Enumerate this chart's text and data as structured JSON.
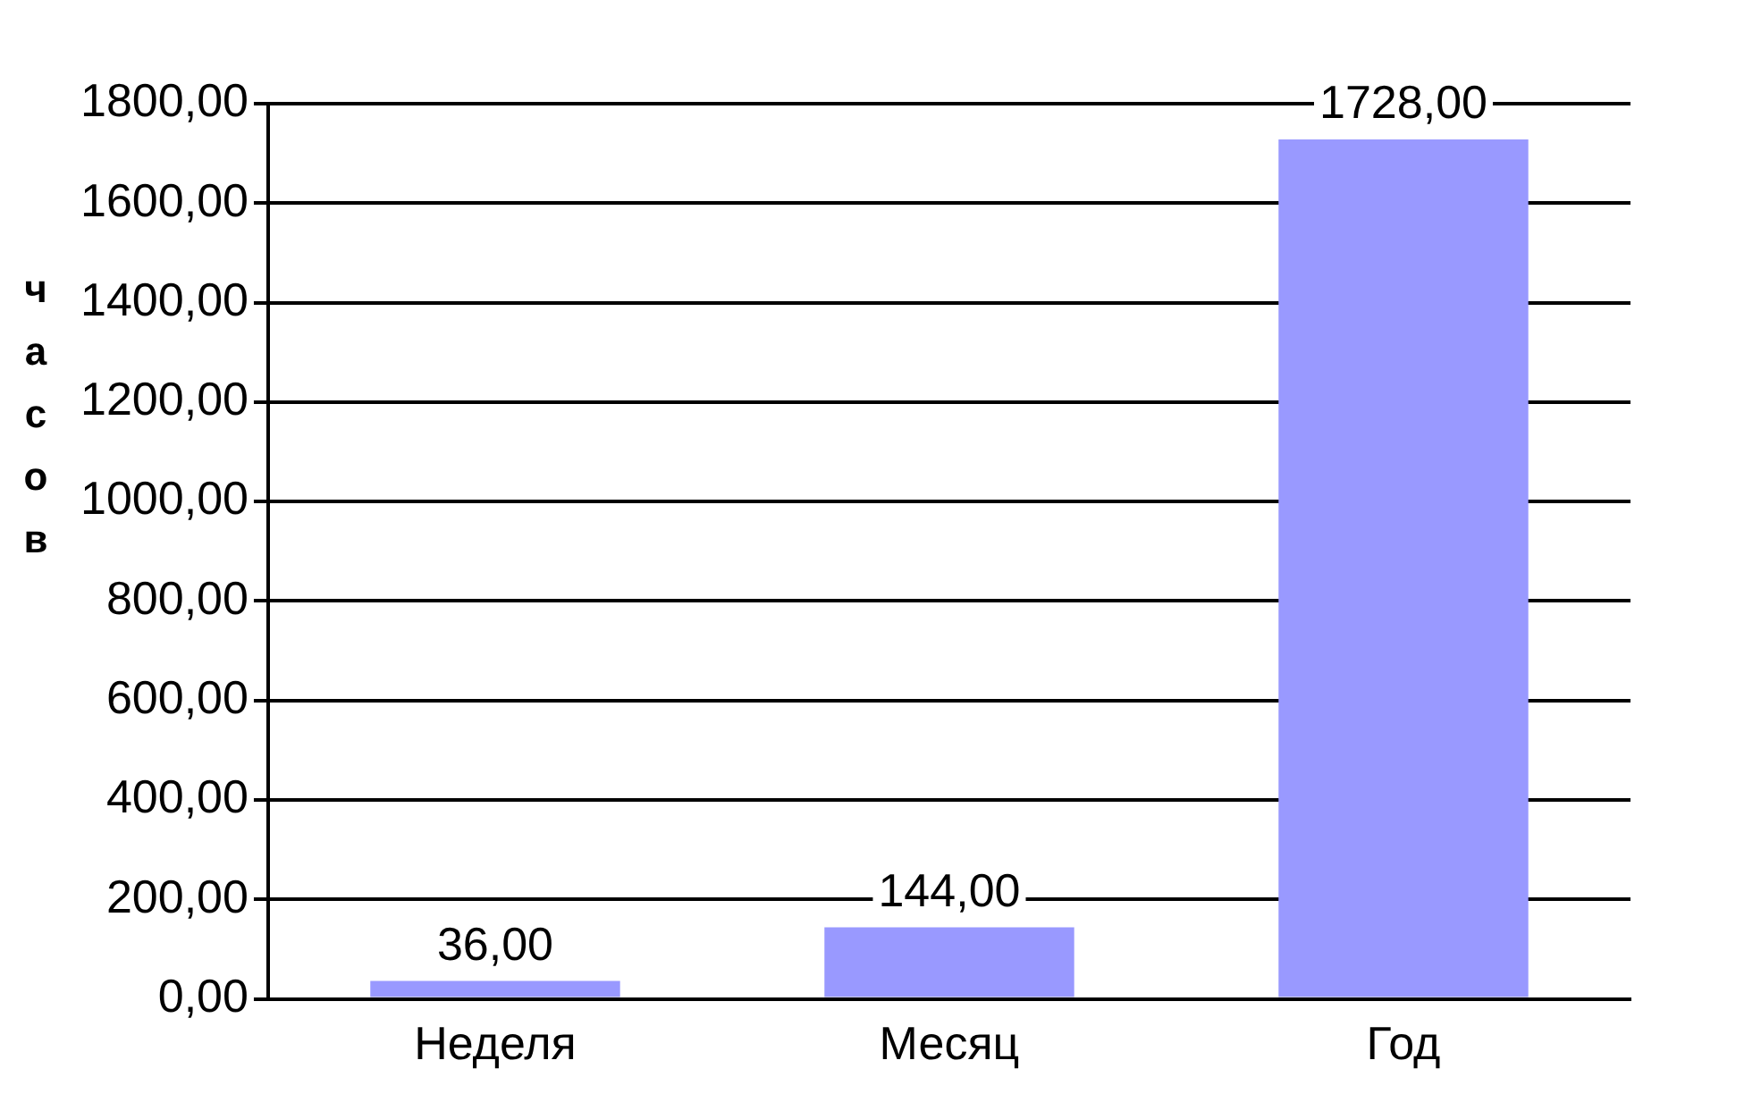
{
  "chart_data": {
    "type": "bar",
    "ylabel": "часов",
    "categories": [
      "Неделя",
      "Месяц",
      "Год"
    ],
    "values": [
      36,
      144,
      1728
    ],
    "color": "#9999ff",
    "value_labels": [
      "36,00",
      "144,00",
      "1728,00"
    ],
    "ylim": [
      0,
      1800
    ],
    "yticks": [
      {
        "value": 0,
        "label": "0,00"
      },
      {
        "value": 200,
        "label": "200,00"
      },
      {
        "value": 400,
        "label": "400,00"
      },
      {
        "value": 600,
        "label": "600,00"
      },
      {
        "value": 800,
        "label": "800,00"
      },
      {
        "value": 1000,
        "label": "1000,00"
      },
      {
        "value": 1200,
        "label": "1200,00"
      },
      {
        "value": 1400,
        "label": "1400,00"
      },
      {
        "value": 1600,
        "label": "1600,00"
      },
      {
        "value": 1800,
        "label": "1800,00"
      }
    ],
    "grid": "y",
    "legend": false
  }
}
